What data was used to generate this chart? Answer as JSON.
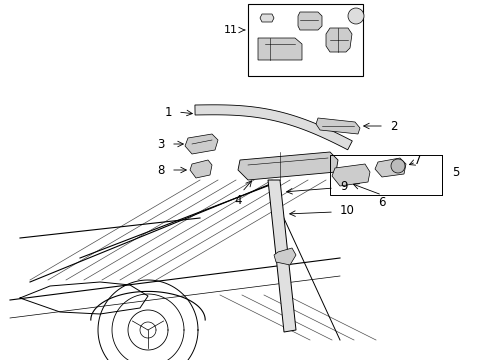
{
  "bg_color": "#ffffff",
  "line_color": "#000000",
  "label_color": "#000000",
  "fig_w": 4.9,
  "fig_h": 3.6,
  "dpi": 100
}
